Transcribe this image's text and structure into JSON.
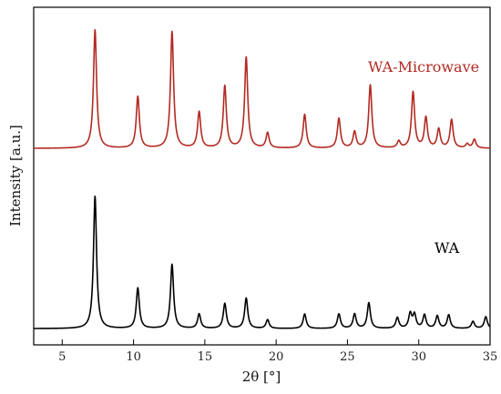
{
  "chart_data": {
    "type": "line",
    "xlabel": "2θ [°]",
    "ylabel": "Intensity [a.u.]",
    "xlim": [
      3,
      35
    ],
    "xticks": [
      5,
      10,
      15,
      20,
      25,
      30,
      35
    ],
    "ylim": [
      0,
      1
    ],
    "y_ticks_shown": false,
    "grid": false,
    "series": [
      {
        "name": "WA-Microwave",
        "color": "#b22a22",
        "baseline": 0.582,
        "peaks": [
          {
            "x": 7.3,
            "y": 0.933
          },
          {
            "x": 10.3,
            "y": 0.735
          },
          {
            "x": 12.7,
            "y": 0.927
          },
          {
            "x": 14.6,
            "y": 0.689
          },
          {
            "x": 16.4,
            "y": 0.766
          },
          {
            "x": 17.9,
            "y": 0.851
          },
          {
            "x": 19.4,
            "y": 0.627
          },
          {
            "x": 22.0,
            "y": 0.682
          },
          {
            "x": 24.4,
            "y": 0.67
          },
          {
            "x": 25.5,
            "y": 0.63
          },
          {
            "x": 26.6,
            "y": 0.769
          },
          {
            "x": 28.6,
            "y": 0.602
          },
          {
            "x": 29.6,
            "y": 0.748
          },
          {
            "x": 30.5,
            "y": 0.672
          },
          {
            "x": 31.4,
            "y": 0.638
          },
          {
            "x": 32.3,
            "y": 0.666
          },
          {
            "x": 33.4,
            "y": 0.594
          },
          {
            "x": 33.9,
            "y": 0.608
          }
        ]
      },
      {
        "name": "WA",
        "color": "#000000",
        "baseline": 0.048,
        "peaks": [
          {
            "x": 7.3,
            "y": 0.44
          },
          {
            "x": 10.3,
            "y": 0.168
          },
          {
            "x": 12.7,
            "y": 0.238
          },
          {
            "x": 14.6,
            "y": 0.091
          },
          {
            "x": 16.4,
            "y": 0.122
          },
          {
            "x": 17.9,
            "y": 0.138
          },
          {
            "x": 19.4,
            "y": 0.074
          },
          {
            "x": 22.0,
            "y": 0.091
          },
          {
            "x": 24.4,
            "y": 0.091
          },
          {
            "x": 25.5,
            "y": 0.091
          },
          {
            "x": 26.5,
            "y": 0.124
          },
          {
            "x": 28.5,
            "y": 0.08
          },
          {
            "x": 29.4,
            "y": 0.091
          },
          {
            "x": 29.7,
            "y": 0.088
          },
          {
            "x": 30.4,
            "y": 0.088
          },
          {
            "x": 31.3,
            "y": 0.085
          },
          {
            "x": 32.1,
            "y": 0.088
          },
          {
            "x": 33.8,
            "y": 0.069
          },
          {
            "x": 34.7,
            "y": 0.083
          }
        ]
      }
    ]
  }
}
